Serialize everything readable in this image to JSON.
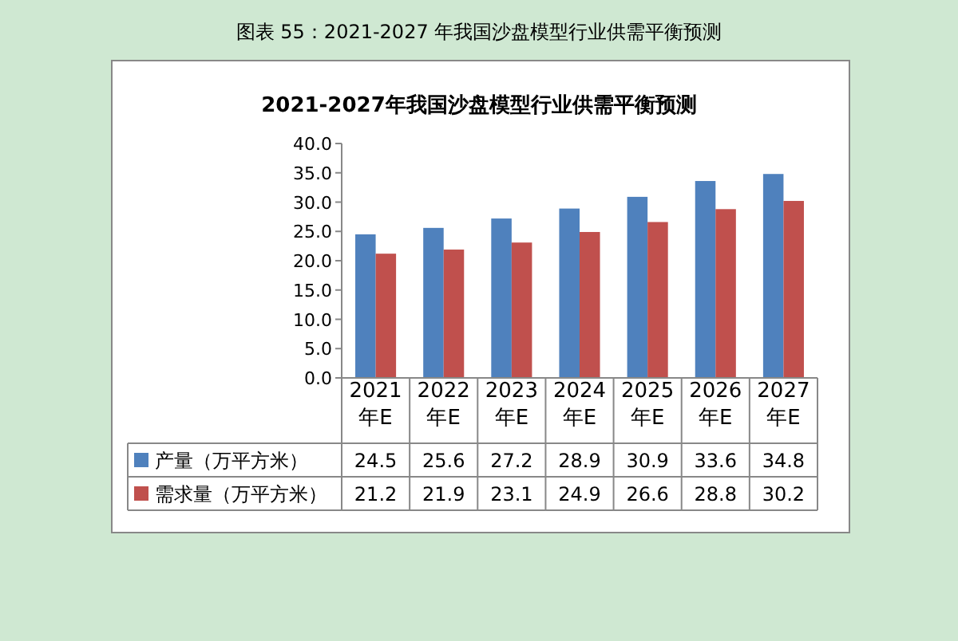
{
  "chart_data": {
    "type": "bar",
    "title": "图表 55：2021-2027 年我国沙盘模型行业供需平衡预测",
    "subtitle": "2021-2027年我国沙盘模型行业供需平衡预测",
    "categories": [
      "2021年E",
      "2022年E",
      "2023年E",
      "2024年E",
      "2025年E",
      "2026年E",
      "2027年E"
    ],
    "series": [
      {
        "name": "产量（万平方米）",
        "color": "#4f81bd",
        "values": [
          24.5,
          25.6,
          27.2,
          28.9,
          30.9,
          33.6,
          34.8
        ]
      },
      {
        "name": "需求量（万平方米）",
        "color": "#c0504d",
        "values": [
          21.2,
          21.9,
          23.1,
          24.9,
          26.6,
          28.8,
          30.2
        ]
      }
    ],
    "ylim": [
      0,
      40
    ],
    "yticks": [
      {
        "value": 0,
        "label": "0.0"
      },
      {
        "value": 5,
        "label": "5.0"
      },
      {
        "value": 10,
        "label": "10.0"
      },
      {
        "value": 15,
        "label": "15.0"
      },
      {
        "value": 20,
        "label": "20.0"
      },
      {
        "value": 25,
        "label": "25.0"
      },
      {
        "value": 30,
        "label": "30.0"
      },
      {
        "value": 35,
        "label": "35.0"
      },
      {
        "value": 40,
        "label": "40.0"
      }
    ],
    "legend": "bottom",
    "data_labels": true,
    "grid": false
  }
}
